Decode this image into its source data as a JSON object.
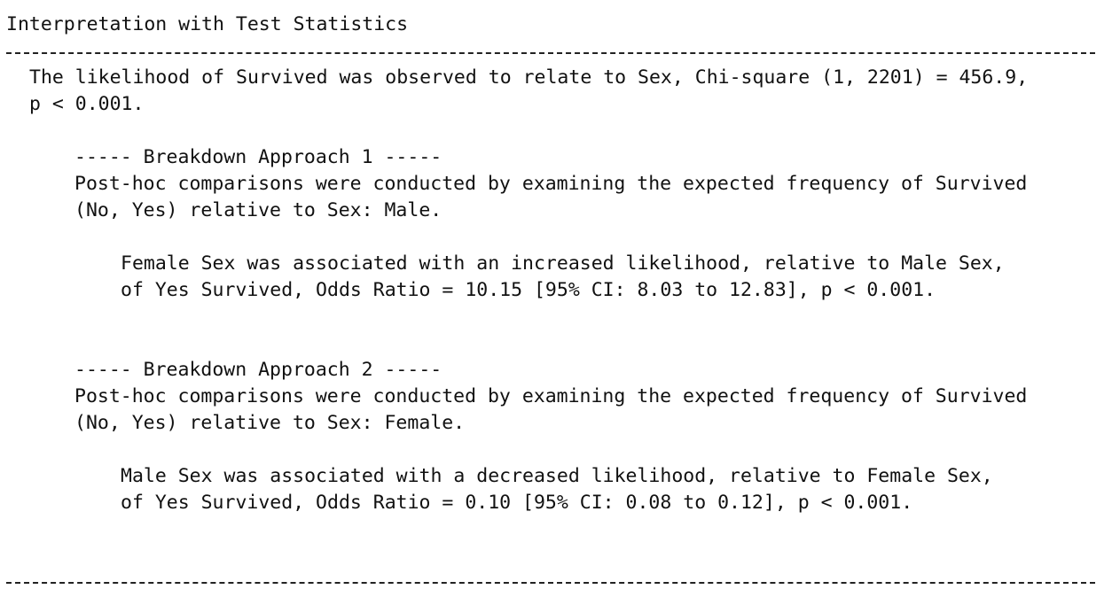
{
  "title": "Interpretation with Test Statistics",
  "summary": {
    "line1": "The likelihood of Survived was observed to relate to Sex, Chi-square (1, 2201) = 456.9,",
    "line2": "p < 0.001."
  },
  "approaches": [
    {
      "heading": "----- Breakdown Approach 1 -----",
      "desc_line1": "Post-hoc comparisons were conducted by examining the expected frequency of Survived",
      "desc_line2": "(No, Yes) relative to Sex: Male.",
      "result_line1": "Female Sex was associated with an increased likelihood, relative to Male Sex,",
      "result_line2": "of Yes Survived, Odds Ratio = 10.15 [95% CI: 8.03 to 12.83], p < 0.001."
    },
    {
      "heading": "----- Breakdown Approach 2 -----",
      "desc_line1": "Post-hoc comparisons were conducted by examining the expected frequency of Survived",
      "desc_line2": "(No, Yes) relative to Sex: Female.",
      "result_line1": "Male Sex was associated with a decreased likelihood, relative to Female Sex,",
      "result_line2": "of Yes Survived, Odds Ratio = 0.10 [95% CI: 0.08 to 0.12], p < 0.001."
    }
  ]
}
